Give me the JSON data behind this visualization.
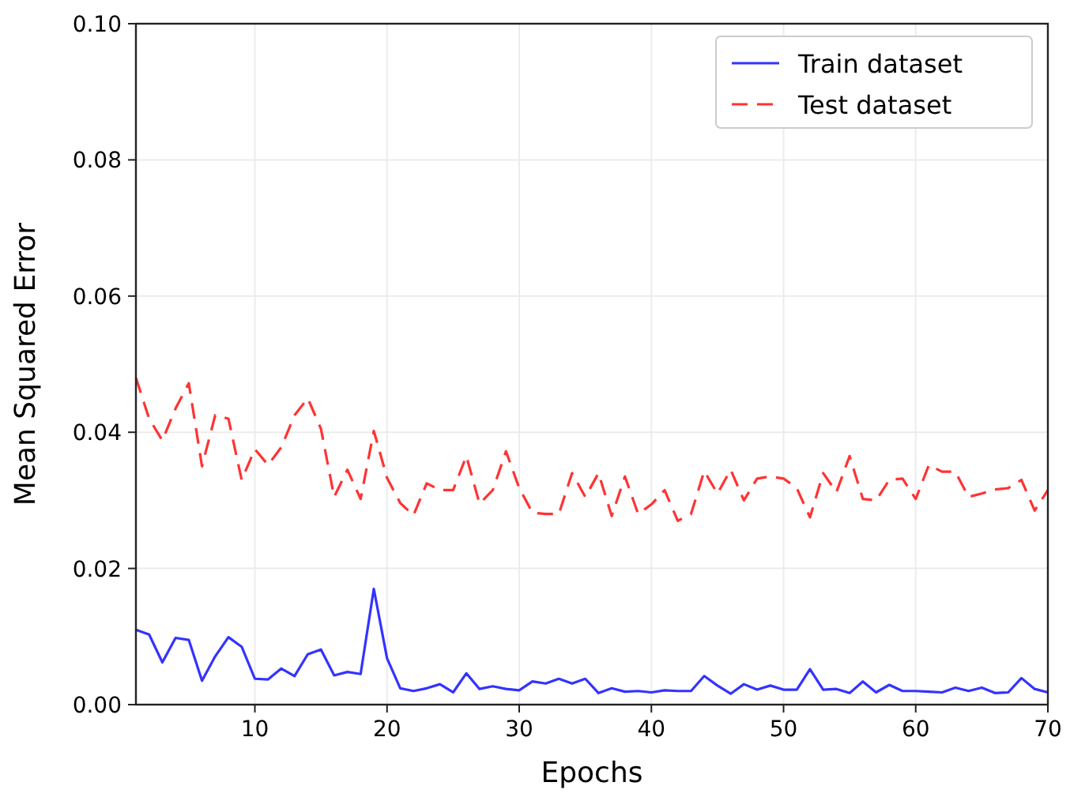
{
  "chart_data": {
    "type": "line",
    "xlabel": "Epochs",
    "ylabel": "Mean Squared Error",
    "x": [
      1,
      2,
      3,
      4,
      5,
      6,
      7,
      8,
      9,
      10,
      11,
      12,
      13,
      14,
      15,
      16,
      17,
      18,
      19,
      20,
      21,
      22,
      23,
      24,
      25,
      26,
      27,
      28,
      29,
      30,
      31,
      32,
      33,
      34,
      35,
      36,
      37,
      38,
      39,
      40,
      41,
      42,
      43,
      44,
      45,
      46,
      47,
      48,
      49,
      50,
      51,
      52,
      53,
      54,
      55,
      56,
      57,
      58,
      59,
      60,
      61,
      62,
      63,
      64,
      65,
      66,
      67,
      68,
      69,
      70
    ],
    "series": [
      {
        "name": "Train dataset",
        "color": "#3333ff",
        "line_style": "solid",
        "values": [
          0.011,
          0.0103,
          0.0062,
          0.0098,
          0.0095,
          0.0035,
          0.0071,
          0.0099,
          0.0085,
          0.0038,
          0.0037,
          0.0053,
          0.0042,
          0.0074,
          0.0081,
          0.0043,
          0.0048,
          0.0045,
          0.017,
          0.0068,
          0.0024,
          0.002,
          0.0024,
          0.003,
          0.0018,
          0.0046,
          0.0023,
          0.0027,
          0.0023,
          0.0021,
          0.0034,
          0.0031,
          0.0038,
          0.0031,
          0.0038,
          0.0017,
          0.0024,
          0.0019,
          0.002,
          0.0018,
          0.0021,
          0.002,
          0.002,
          0.0042,
          0.0028,
          0.0016,
          0.003,
          0.0022,
          0.0028,
          0.0022,
          0.0022,
          0.0052,
          0.0022,
          0.0023,
          0.0017,
          0.0034,
          0.0018,
          0.0029,
          0.002,
          0.002,
          0.0019,
          0.0018,
          0.0025,
          0.002,
          0.0025,
          0.0017,
          0.0018,
          0.0039,
          0.0023,
          0.0018
        ]
      },
      {
        "name": "Test dataset",
        "color": "#ff3333",
        "line_style": "dashed",
        "values": [
          0.048,
          0.042,
          0.0388,
          0.0435,
          0.0472,
          0.035,
          0.0425,
          0.042,
          0.033,
          0.0375,
          0.0352,
          0.0378,
          0.0425,
          0.045,
          0.0405,
          0.0305,
          0.0345,
          0.0302,
          0.0402,
          0.0333,
          0.0296,
          0.0278,
          0.0325,
          0.0315,
          0.0315,
          0.0365,
          0.0295,
          0.0315,
          0.0372,
          0.0318,
          0.0282,
          0.028,
          0.028,
          0.034,
          0.0305,
          0.034,
          0.0277,
          0.0335,
          0.028,
          0.0294,
          0.0315,
          0.027,
          0.028,
          0.0343,
          0.031,
          0.0345,
          0.03,
          0.0332,
          0.0335,
          0.0332,
          0.0318,
          0.0275,
          0.034,
          0.0312,
          0.0365,
          0.0302,
          0.03,
          0.033,
          0.0332,
          0.0302,
          0.0352,
          0.0342,
          0.0342,
          0.0305,
          0.031,
          0.0316,
          0.0318,
          0.033,
          0.0285,
          0.0315
        ]
      }
    ],
    "xlim": [
      1,
      70
    ],
    "xticks": [
      10,
      20,
      30,
      40,
      50,
      60,
      70
    ],
    "ylim": [
      0,
      0.1
    ],
    "yticks": [
      {
        "value": 0,
        "label": "0.00"
      },
      {
        "value": 0.02,
        "label": "0.02"
      },
      {
        "value": 0.04,
        "label": "0.04"
      },
      {
        "value": 0.06,
        "label": "0.06"
      },
      {
        "value": 0.08,
        "label": "0.08"
      },
      {
        "value": 0.1,
        "label": "0.10"
      }
    ],
    "grid": true,
    "legend": "top right",
    "marker": "none"
  }
}
